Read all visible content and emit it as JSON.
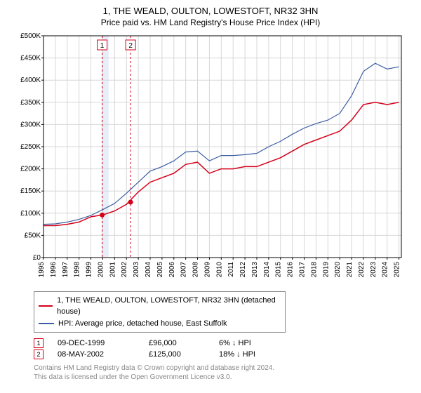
{
  "title": "1, THE WEALD, OULTON, LOWESTOFT, NR32 3HN",
  "subtitle": "Price paid vs. HM Land Registry's House Price Index (HPI)",
  "chart": {
    "type": "line",
    "background_color": "#ffffff",
    "grid_color": "#d7d7d7",
    "axis_color": "#000000",
    "tick_font_size": 10,
    "label_font_size": 11,
    "x": {
      "years": [
        1995,
        1996,
        1997,
        1998,
        1999,
        2000,
        2001,
        2002,
        2003,
        2004,
        2005,
        2006,
        2007,
        2008,
        2009,
        2010,
        2011,
        2012,
        2013,
        2014,
        2015,
        2016,
        2017,
        2018,
        2019,
        2020,
        2021,
        2022,
        2023,
        2024,
        2025
      ],
      "label_rotation": -90
    },
    "y": {
      "min": 0,
      "max": 500000,
      "tick_step": 50000,
      "labels": [
        "£0",
        "£50K",
        "£100K",
        "£150K",
        "£200K",
        "£250K",
        "£300K",
        "£350K",
        "£400K",
        "£450K",
        "£500K"
      ]
    },
    "shaded_band": {
      "from_year": 1999.95,
      "to_year": 2000.5,
      "color": "#e8eef9"
    },
    "series": [
      {
        "name": "property",
        "label": "1, THE WEALD, OULTON, LOWESTOFT, NR32 3HN (detached house)",
        "color": "#d4001a",
        "width": 1.5,
        "years": [
          1995,
          1996,
          1997,
          1998,
          1999,
          2000,
          2001,
          2002,
          2003,
          2004,
          2005,
          2006,
          2007,
          2008,
          2009,
          2010,
          2011,
          2012,
          2013,
          2014,
          2015,
          2016,
          2017,
          2018,
          2019,
          2020,
          2021,
          2022,
          2023,
          2024,
          2025
        ],
        "values": [
          72000,
          72000,
          75000,
          80000,
          92000,
          96000,
          105000,
          120000,
          148000,
          170000,
          180000,
          190000,
          210000,
          215000,
          190000,
          200000,
          200000,
          205000,
          205000,
          215000,
          225000,
          240000,
          255000,
          265000,
          275000,
          285000,
          310000,
          345000,
          350000,
          345000,
          350000
        ]
      },
      {
        "name": "hpi",
        "label": "HPI: Average price, detached house, East Suffolk",
        "color": "#3b5ea3",
        "width": 1.2,
        "years": [
          1995,
          1996,
          1997,
          1998,
          1999,
          2000,
          2001,
          2002,
          2003,
          2004,
          2005,
          2006,
          2007,
          2008,
          2009,
          2010,
          2011,
          2012,
          2013,
          2014,
          2015,
          2016,
          2017,
          2018,
          2019,
          2020,
          2021,
          2022,
          2023,
          2024,
          2025
        ],
        "values": [
          75000,
          76000,
          80000,
          86000,
          95000,
          108000,
          122000,
          145000,
          170000,
          195000,
          205000,
          218000,
          238000,
          240000,
          218000,
          230000,
          230000,
          232000,
          235000,
          250000,
          262000,
          278000,
          292000,
          302000,
          310000,
          325000,
          365000,
          420000,
          438000,
          425000,
          430000
        ]
      }
    ],
    "markers": [
      {
        "id": "1",
        "year": 1999.95,
        "value": 96000,
        "color": "#d4001a",
        "box_border": "#d4001a",
        "dash_color": "#d4001a"
      },
      {
        "id": "2",
        "year": 2002.35,
        "value": 125000,
        "color": "#d4001a",
        "box_border": "#d4001a",
        "dash_color": "#d4001a"
      }
    ]
  },
  "legend": {
    "items": [
      {
        "color": "#d4001a",
        "label": "1, THE WEALD, OULTON, LOWESTOFT, NR32 3HN (detached house)"
      },
      {
        "color": "#3b5ea3",
        "label": "HPI: Average price, detached house, East Suffolk"
      }
    ]
  },
  "annotations": [
    {
      "id": "1",
      "box_border": "#d4001a",
      "date": "09-DEC-1999",
      "price": "£96,000",
      "diff": "6% ↓ HPI"
    },
    {
      "id": "2",
      "box_border": "#d4001a",
      "date": "08-MAY-2002",
      "price": "£125,000",
      "diff": "18% ↓ HPI"
    }
  ],
  "footnote_line1": "Contains HM Land Registry data © Crown copyright and database right 2024.",
  "footnote_line2": "This data is licensed under the Open Government Licence v3.0."
}
